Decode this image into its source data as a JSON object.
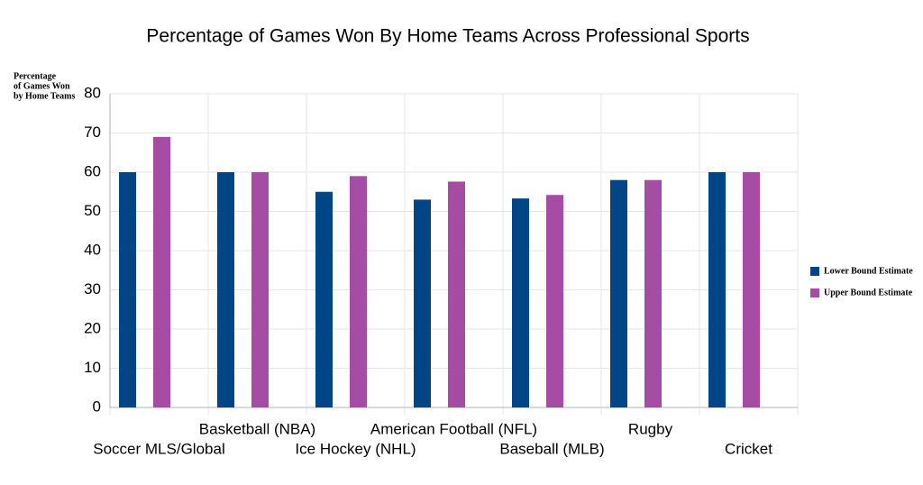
{
  "chart_data": {
    "type": "bar",
    "title": "Percentage of Games Won By Home Teams Across Professional Sports",
    "ylabel": [
      "Percentage",
      "of Games Won",
      "by Home Teams"
    ],
    "categories": [
      "Soccer MLS/Global",
      "Basketball (NBA)",
      "Ice Hockey (NHL)",
      "American Football (NFL)",
      "Baseball (MLB)",
      "Rugby",
      "Cricket"
    ],
    "series": [
      {
        "name": "Lower Bound Estimate",
        "color": "#004586",
        "values": [
          60,
          60,
          55,
          53,
          53.3,
          58,
          60
        ]
      },
      {
        "name": "Upper Bound Estimate",
        "color": "#a54ca5",
        "values": [
          69,
          60,
          59,
          57.6,
          54.2,
          58,
          60
        ]
      }
    ],
    "ylim": [
      0,
      80
    ],
    "yticks": [
      0,
      10,
      20,
      30,
      40,
      50,
      60,
      70,
      80
    ],
    "grid": true,
    "legend": "right"
  }
}
